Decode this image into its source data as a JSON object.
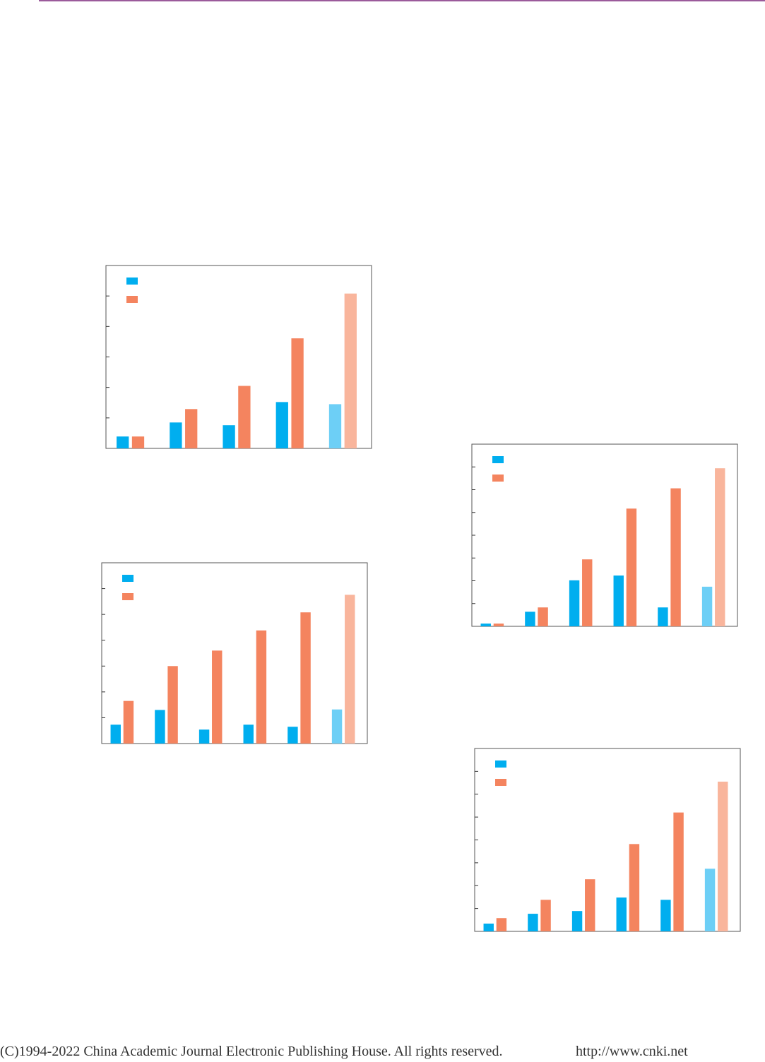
{
  "chart_data": [
    {
      "type": "bar",
      "categories": [
        null,
        null,
        null,
        null,
        null
      ],
      "series": [
        {
          "color": "#00aeef",
          "colors": [
            "#00aeef",
            "#00aeef",
            "#00aeef",
            "#00aeef",
            "#6dcff6"
          ],
          "values": [
            0.39,
            0.85,
            0.76,
            1.52,
            1.45
          ]
        },
        {
          "color": "#f4845f",
          "colors": [
            "#f4845f",
            "#f4845f",
            "#f4845f",
            "#f4845f",
            "#f9b59c"
          ],
          "values": [
            0.39,
            1.29,
            2.05,
            3.61,
            5.08
          ]
        }
      ],
      "ylim": [
        0,
        6
      ],
      "yticks": [
        1,
        2,
        3,
        4,
        5
      ]
    },
    {
      "type": "bar",
      "categories": [
        null,
        null,
        null,
        null,
        null,
        null
      ],
      "series": [
        {
          "color": "#00aeef",
          "colors": [
            "#00aeef",
            "#00aeef",
            "#00aeef",
            "#00aeef",
            "#00aeef",
            "#6dcff6"
          ],
          "values": [
            0.73,
            1.3,
            0.54,
            0.73,
            0.65,
            1.32
          ]
        },
        {
          "color": "#f4845f",
          "colors": [
            "#f4845f",
            "#f4845f",
            "#f4845f",
            "#f4845f",
            "#f4845f",
            "#f9b59c"
          ],
          "values": [
            1.65,
            3.0,
            3.6,
            4.38,
            5.08,
            5.76
          ]
        }
      ],
      "ylim": [
        0,
        7
      ],
      "yticks": [
        1,
        2,
        3,
        4,
        5,
        6
      ]
    },
    {
      "type": "bar",
      "categories": [
        null,
        null,
        null,
        null,
        null,
        null
      ],
      "series": [
        {
          "color": "#00aeef",
          "colors": [
            "#00aeef",
            "#00aeef",
            "#00aeef",
            "#00aeef",
            "#00aeef",
            "#6dcff6"
          ],
          "values": [
            0.12,
            0.64,
            2.02,
            2.23,
            0.83,
            1.74
          ]
        },
        {
          "color": "#f4845f",
          "colors": [
            "#f4845f",
            "#f4845f",
            "#f4845f",
            "#f4845f",
            "#f4845f",
            "#f9b59c"
          ],
          "values": [
            0.12,
            0.83,
            2.94,
            5.17,
            6.06,
            6.94
          ]
        }
      ],
      "ylim": [
        0,
        8
      ],
      "yticks": [
        1,
        2,
        3,
        4,
        5,
        6,
        7
      ]
    },
    {
      "type": "bar",
      "categories": [
        null,
        null,
        null,
        null,
        null,
        null
      ],
      "series": [
        {
          "color": "#00aeef",
          "colors": [
            "#00aeef",
            "#00aeef",
            "#00aeef",
            "#00aeef",
            "#00aeef",
            "#6dcff6"
          ],
          "values": [
            0.34,
            0.77,
            0.89,
            1.48,
            1.38,
            2.74
          ]
        },
        {
          "color": "#f4845f",
          "colors": [
            "#f4845f",
            "#f4845f",
            "#f4845f",
            "#f4845f",
            "#f4845f",
            "#f9b59c"
          ],
          "values": [
            0.58,
            1.38,
            2.28,
            3.82,
            5.2,
            6.55
          ]
        }
      ],
      "ylim": [
        0,
        8
      ],
      "yticks": [
        1,
        2,
        3,
        4,
        5,
        6,
        7
      ]
    }
  ],
  "footer": {
    "copyright": "(C)1994-2022 China Academic Journal Electronic Publishing House. All rights reserved.",
    "url": "http://www.cnki.net"
  }
}
